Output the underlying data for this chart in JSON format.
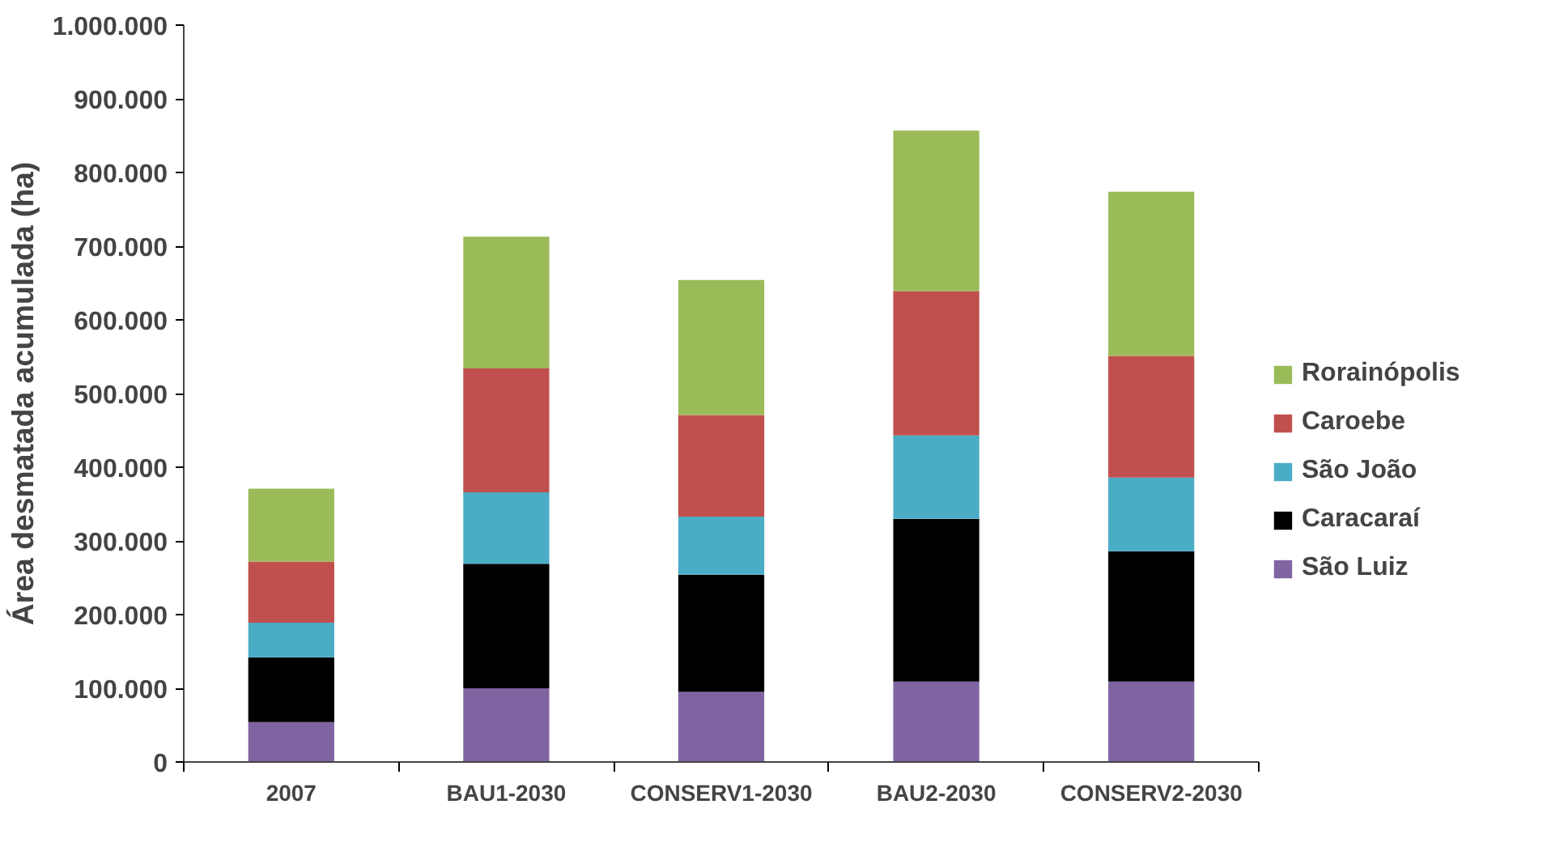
{
  "chart_data": {
    "type": "bar",
    "stacked": true,
    "ylabel": "Área desmatada acumulada (ha)",
    "categories": [
      "2007",
      "BAU1-2030",
      "CONSERV1-2030",
      "BAU2-2030",
      "CONSERV2-2030"
    ],
    "series": [
      {
        "name": "São Luiz",
        "color": "#8064a2",
        "values": [
          54000,
          100000,
          95000,
          109000,
          109000
        ]
      },
      {
        "name": "Caracaraí",
        "color": "#000000",
        "values": [
          88000,
          169000,
          159000,
          221000,
          177000
        ]
      },
      {
        "name": "São João",
        "color": "#4bacc6",
        "values": [
          47000,
          97000,
          79000,
          113000,
          100000
        ]
      },
      {
        "name": "Caroebe",
        "color": "#c0504d",
        "values": [
          83000,
          168000,
          138000,
          196000,
          165000
        ]
      },
      {
        "name": "Rorainópolis",
        "color": "#9bbb59",
        "values": [
          99000,
          179000,
          183000,
          218000,
          223000
        ]
      }
    ],
    "ylim": [
      0,
      1000000
    ],
    "yticks": [
      {
        "value": 0,
        "label": "0"
      },
      {
        "value": 100000,
        "label": "100.000"
      },
      {
        "value": 200000,
        "label": "200.000"
      },
      {
        "value": 300000,
        "label": "300.000"
      },
      {
        "value": 400000,
        "label": "400.000"
      },
      {
        "value": 500000,
        "label": "500.000"
      },
      {
        "value": 600000,
        "label": "600.000"
      },
      {
        "value": 700000,
        "label": "700.000"
      },
      {
        "value": 800000,
        "label": "800.000"
      },
      {
        "value": 900000,
        "label": "900.000"
      },
      {
        "value": 1000000,
        "label": "1.000.000"
      }
    ],
    "grid": false,
    "legend": "right"
  }
}
